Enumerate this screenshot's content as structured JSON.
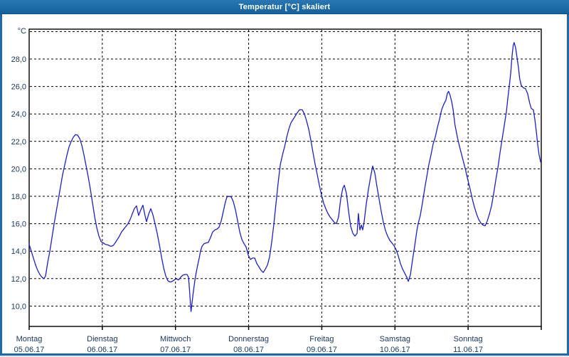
{
  "window": {
    "title": "Temperatur [°C] skaliert",
    "titlebar_color": "#1d6ba6",
    "border_color": "#1d6aa6",
    "background_color": "#ffffff"
  },
  "chart_data": {
    "type": "line",
    "title": "Temperatur [°C] skaliert",
    "grid": "dashed",
    "legend": "none",
    "y_axis": {
      "unit": "°C",
      "shown_range": [
        8.5,
        30.2
      ],
      "gridline_step": 2,
      "ticks": [
        {
          "value": 30,
          "label": ""
        },
        {
          "value": 28,
          "label": "28,0"
        },
        {
          "value": 26,
          "label": "26,0"
        },
        {
          "value": 24,
          "label": "24,0"
        },
        {
          "value": 22,
          "label": "22,0"
        },
        {
          "value": 20,
          "label": "20,0"
        },
        {
          "value": 18,
          "label": "18,0"
        },
        {
          "value": 16,
          "label": "16,0"
        },
        {
          "value": 14,
          "label": "14,0"
        },
        {
          "value": 12,
          "label": "12,0"
        },
        {
          "value": 10,
          "label": "10,0"
        }
      ]
    },
    "x_axis": {
      "unit": "hours since Monday 00:00",
      "range_hours": [
        0,
        168
      ],
      "days": [
        {
          "name": "Montag",
          "date": "05.06.17"
        },
        {
          "name": "Dienstag",
          "date": "06.06.17"
        },
        {
          "name": "Mittwoch",
          "date": "07.06.17"
        },
        {
          "name": "Donnerstag",
          "date": "08.06.17"
        },
        {
          "name": "Freitag",
          "date": "09.06.17"
        },
        {
          "name": "Samstag",
          "date": "10.06.17"
        },
        {
          "name": "Sonntag",
          "date": "11.06.17"
        }
      ]
    },
    "series": [
      {
        "name": "Temperatur",
        "color": "#1f1fc8",
        "points": [
          [
            0,
            14.5
          ],
          [
            0.7,
            14.0
          ],
          [
            1.4,
            13.5
          ],
          [
            2.1,
            13.0
          ],
          [
            2.8,
            12.6
          ],
          [
            3.5,
            12.3
          ],
          [
            4.2,
            12.1
          ],
          [
            4.9,
            12.0
          ],
          [
            5.4,
            12.2
          ],
          [
            6.1,
            13.2
          ],
          [
            6.8,
            14.0
          ],
          [
            7.5,
            15.0
          ],
          [
            8.2,
            16.0
          ],
          [
            8.9,
            16.9
          ],
          [
            9.6,
            17.8
          ],
          [
            10.3,
            18.7
          ],
          [
            11,
            19.6
          ],
          [
            11.7,
            20.3
          ],
          [
            12.4,
            21.0
          ],
          [
            13.1,
            21.6
          ],
          [
            13.8,
            22.0
          ],
          [
            14.5,
            22.3
          ],
          [
            15.2,
            22.5
          ],
          [
            15.9,
            22.45
          ],
          [
            16.6,
            22.2
          ],
          [
            17.3,
            21.7
          ],
          [
            18,
            21.0
          ],
          [
            18.7,
            20.2
          ],
          [
            19.4,
            19.4
          ],
          [
            20.1,
            18.5
          ],
          [
            20.8,
            17.5
          ],
          [
            21.5,
            16.5
          ],
          [
            22.2,
            15.7
          ],
          [
            22.9,
            15.1
          ],
          [
            23.6,
            14.7
          ],
          [
            24.3,
            14.6
          ],
          [
            25,
            14.5
          ],
          [
            25.9,
            14.45
          ],
          [
            26.8,
            14.35
          ],
          [
            27.5,
            14.4
          ],
          [
            28.2,
            14.6
          ],
          [
            28.9,
            14.85
          ],
          [
            29.6,
            15.1
          ],
          [
            30.3,
            15.4
          ],
          [
            31,
            15.6
          ],
          [
            31.7,
            15.8
          ],
          [
            32.4,
            16.0
          ],
          [
            33.1,
            16.3
          ],
          [
            33.8,
            16.7
          ],
          [
            34.5,
            17.1
          ],
          [
            35.2,
            17.3
          ],
          [
            35.9,
            16.6
          ],
          [
            36.6,
            17.0
          ],
          [
            37.3,
            17.35
          ],
          [
            38,
            16.6
          ],
          [
            38.5,
            16.15
          ],
          [
            39.2,
            16.7
          ],
          [
            39.9,
            17.1
          ],
          [
            40.6,
            16.65
          ],
          [
            41.3,
            16.0
          ],
          [
            42,
            15.3
          ],
          [
            42.7,
            14.5
          ],
          [
            43.4,
            13.6
          ],
          [
            44.1,
            12.8
          ],
          [
            44.8,
            12.2
          ],
          [
            45.5,
            11.85
          ],
          [
            46.2,
            11.75
          ],
          [
            46.9,
            11.8
          ],
          [
            47.6,
            11.9
          ],
          [
            48.3,
            12.0
          ],
          [
            49,
            11.9
          ],
          [
            49.7,
            12.1
          ],
          [
            50.4,
            12.25
          ],
          [
            51.1,
            12.3
          ],
          [
            51.8,
            12.3
          ],
          [
            52.3,
            12.1
          ],
          [
            52.6,
            11.2
          ],
          [
            52.9,
            10.2
          ],
          [
            53.1,
            9.6
          ],
          [
            53.4,
            10.2
          ],
          [
            53.9,
            11.1
          ],
          [
            54.4,
            11.9
          ],
          [
            54.8,
            12.45
          ],
          [
            55.3,
            13.0
          ],
          [
            55.8,
            13.5
          ],
          [
            56.2,
            14.0
          ],
          [
            56.7,
            14.35
          ],
          [
            57.4,
            14.55
          ],
          [
            58.1,
            14.6
          ],
          [
            58.8,
            14.65
          ],
          [
            59.5,
            15.0
          ],
          [
            60.2,
            15.4
          ],
          [
            60.9,
            15.55
          ],
          [
            61.6,
            15.6
          ],
          [
            62.3,
            15.75
          ],
          [
            63,
            16.2
          ],
          [
            63.7,
            16.9
          ],
          [
            64.4,
            17.6
          ],
          [
            64.9,
            17.95
          ],
          [
            65.6,
            18.0
          ],
          [
            66.3,
            17.95
          ],
          [
            67,
            17.6
          ],
          [
            67.7,
            17.0
          ],
          [
            68.4,
            16.2
          ],
          [
            69.1,
            15.4
          ],
          [
            69.8,
            14.85
          ],
          [
            70.5,
            14.55
          ],
          [
            71.2,
            14.3
          ],
          [
            71.9,
            13.7
          ],
          [
            72.6,
            13.4
          ],
          [
            73.3,
            13.5
          ],
          [
            74,
            13.5
          ],
          [
            74.7,
            13.1
          ],
          [
            75.4,
            12.85
          ],
          [
            76.1,
            12.6
          ],
          [
            76.8,
            12.45
          ],
          [
            77.5,
            12.7
          ],
          [
            78.2,
            13.0
          ],
          [
            78.9,
            13.6
          ],
          [
            79.6,
            14.7
          ],
          [
            80.3,
            16.0
          ],
          [
            81,
            17.5
          ],
          [
            81.7,
            19.0
          ],
          [
            82.4,
            20.3
          ],
          [
            83.1,
            21.0
          ],
          [
            83.8,
            21.6
          ],
          [
            84.5,
            22.3
          ],
          [
            85.2,
            22.9
          ],
          [
            85.9,
            23.35
          ],
          [
            86.6,
            23.6
          ],
          [
            87.3,
            23.85
          ],
          [
            88,
            24.1
          ],
          [
            88.7,
            24.3
          ],
          [
            89.6,
            24.3
          ],
          [
            90.3,
            24.0
          ],
          [
            91,
            23.5
          ],
          [
            91.7,
            22.9
          ],
          [
            92.4,
            22.1
          ],
          [
            93.1,
            21.2
          ],
          [
            93.8,
            20.35
          ],
          [
            94.5,
            19.6
          ],
          [
            95.2,
            18.8
          ],
          [
            95.9,
            18.1
          ],
          [
            96.6,
            17.5
          ],
          [
            97.3,
            17.1
          ],
          [
            98,
            16.75
          ],
          [
            98.7,
            16.5
          ],
          [
            99.4,
            16.3
          ],
          [
            100.1,
            16.1
          ],
          [
            100.8,
            16.0
          ],
          [
            101.5,
            16.5
          ],
          [
            102.2,
            17.8
          ],
          [
            102.9,
            18.6
          ],
          [
            103.4,
            18.8
          ],
          [
            104.1,
            18.2
          ],
          [
            104.8,
            16.9
          ],
          [
            105.5,
            15.8
          ],
          [
            106.2,
            15.3
          ],
          [
            106.9,
            15.1
          ],
          [
            107.6,
            15.3
          ],
          [
            108,
            16.75
          ],
          [
            108.5,
            15.55
          ],
          [
            109,
            15.9
          ],
          [
            109.4,
            15.55
          ],
          [
            109.9,
            16.15
          ],
          [
            110.6,
            17.45
          ],
          [
            111.3,
            18.5
          ],
          [
            112,
            19.4
          ],
          [
            112.7,
            20.2
          ],
          [
            113.4,
            19.7
          ],
          [
            114.1,
            18.7
          ],
          [
            114.8,
            17.8
          ],
          [
            115.5,
            16.9
          ],
          [
            116.2,
            16.1
          ],
          [
            116.9,
            15.5
          ],
          [
            117.6,
            15.1
          ],
          [
            118.3,
            14.8
          ],
          [
            119,
            14.6
          ],
          [
            119.7,
            14.4
          ],
          [
            120.4,
            14.1
          ],
          [
            121.1,
            13.65
          ],
          [
            121.8,
            13.1
          ],
          [
            122.5,
            12.7
          ],
          [
            123.2,
            12.4
          ],
          [
            123.9,
            12.1
          ],
          [
            124.4,
            11.8
          ],
          [
            125.1,
            12.3
          ],
          [
            125.8,
            13.4
          ],
          [
            126.5,
            14.4
          ],
          [
            127.2,
            15.5
          ],
          [
            127.6,
            16.0
          ],
          [
            128.3,
            16.6
          ],
          [
            129,
            17.5
          ],
          [
            129.7,
            18.5
          ],
          [
            130.4,
            19.4
          ],
          [
            131.1,
            20.3
          ],
          [
            131.8,
            21.0
          ],
          [
            132.5,
            21.8
          ],
          [
            133.2,
            22.3
          ],
          [
            133.9,
            23.0
          ],
          [
            134.6,
            23.6
          ],
          [
            135.3,
            24.3
          ],
          [
            136,
            24.7
          ],
          [
            136.7,
            25.0
          ],
          [
            137.2,
            25.5
          ],
          [
            137.6,
            25.65
          ],
          [
            138.1,
            25.35
          ],
          [
            138.6,
            24.9
          ],
          [
            139.1,
            24.3
          ],
          [
            139.7,
            23.2
          ],
          [
            140.4,
            22.4
          ],
          [
            141.1,
            21.7
          ],
          [
            141.8,
            21.1
          ],
          [
            142.5,
            20.5
          ],
          [
            143.2,
            19.9
          ],
          [
            143.9,
            19.2
          ],
          [
            144.7,
            18.5
          ],
          [
            145.4,
            17.8
          ],
          [
            146.1,
            17.2
          ],
          [
            146.8,
            16.7
          ],
          [
            147.5,
            16.3
          ],
          [
            148.2,
            16.05
          ],
          [
            148.9,
            15.9
          ],
          [
            149.6,
            15.85
          ],
          [
            150.3,
            16.2
          ],
          [
            151,
            16.7
          ],
          [
            151.7,
            17.3
          ],
          [
            152.4,
            18.2
          ],
          [
            153.1,
            19.2
          ],
          [
            153.8,
            20.1
          ],
          [
            154.5,
            21.2
          ],
          [
            155.2,
            22.2
          ],
          [
            155.9,
            23.2
          ],
          [
            156.6,
            24.2
          ],
          [
            157,
            25.1
          ],
          [
            157.5,
            26.0
          ],
          [
            158,
            27.0
          ],
          [
            158.4,
            28.2
          ],
          [
            158.8,
            29.0
          ],
          [
            159.1,
            29.2
          ],
          [
            159.6,
            28.8
          ],
          [
            160,
            28.2
          ],
          [
            160.5,
            27.4
          ],
          [
            160.9,
            26.6
          ],
          [
            161.4,
            26.1
          ],
          [
            162.1,
            25.9
          ],
          [
            162.8,
            25.85
          ],
          [
            163.5,
            25.5
          ],
          [
            164.2,
            24.8
          ],
          [
            164.7,
            24.4
          ],
          [
            165.4,
            24.3
          ],
          [
            165.9,
            23.6
          ],
          [
            166.4,
            22.7
          ],
          [
            166.8,
            21.8
          ],
          [
            167.3,
            21.0
          ],
          [
            167.8,
            20.5
          ]
        ]
      }
    ],
    "colors": {
      "line": "#1f1fc8",
      "grid": "#000000",
      "tick_text": "#1c3a60",
      "plot_background": "#ffffff"
    }
  }
}
